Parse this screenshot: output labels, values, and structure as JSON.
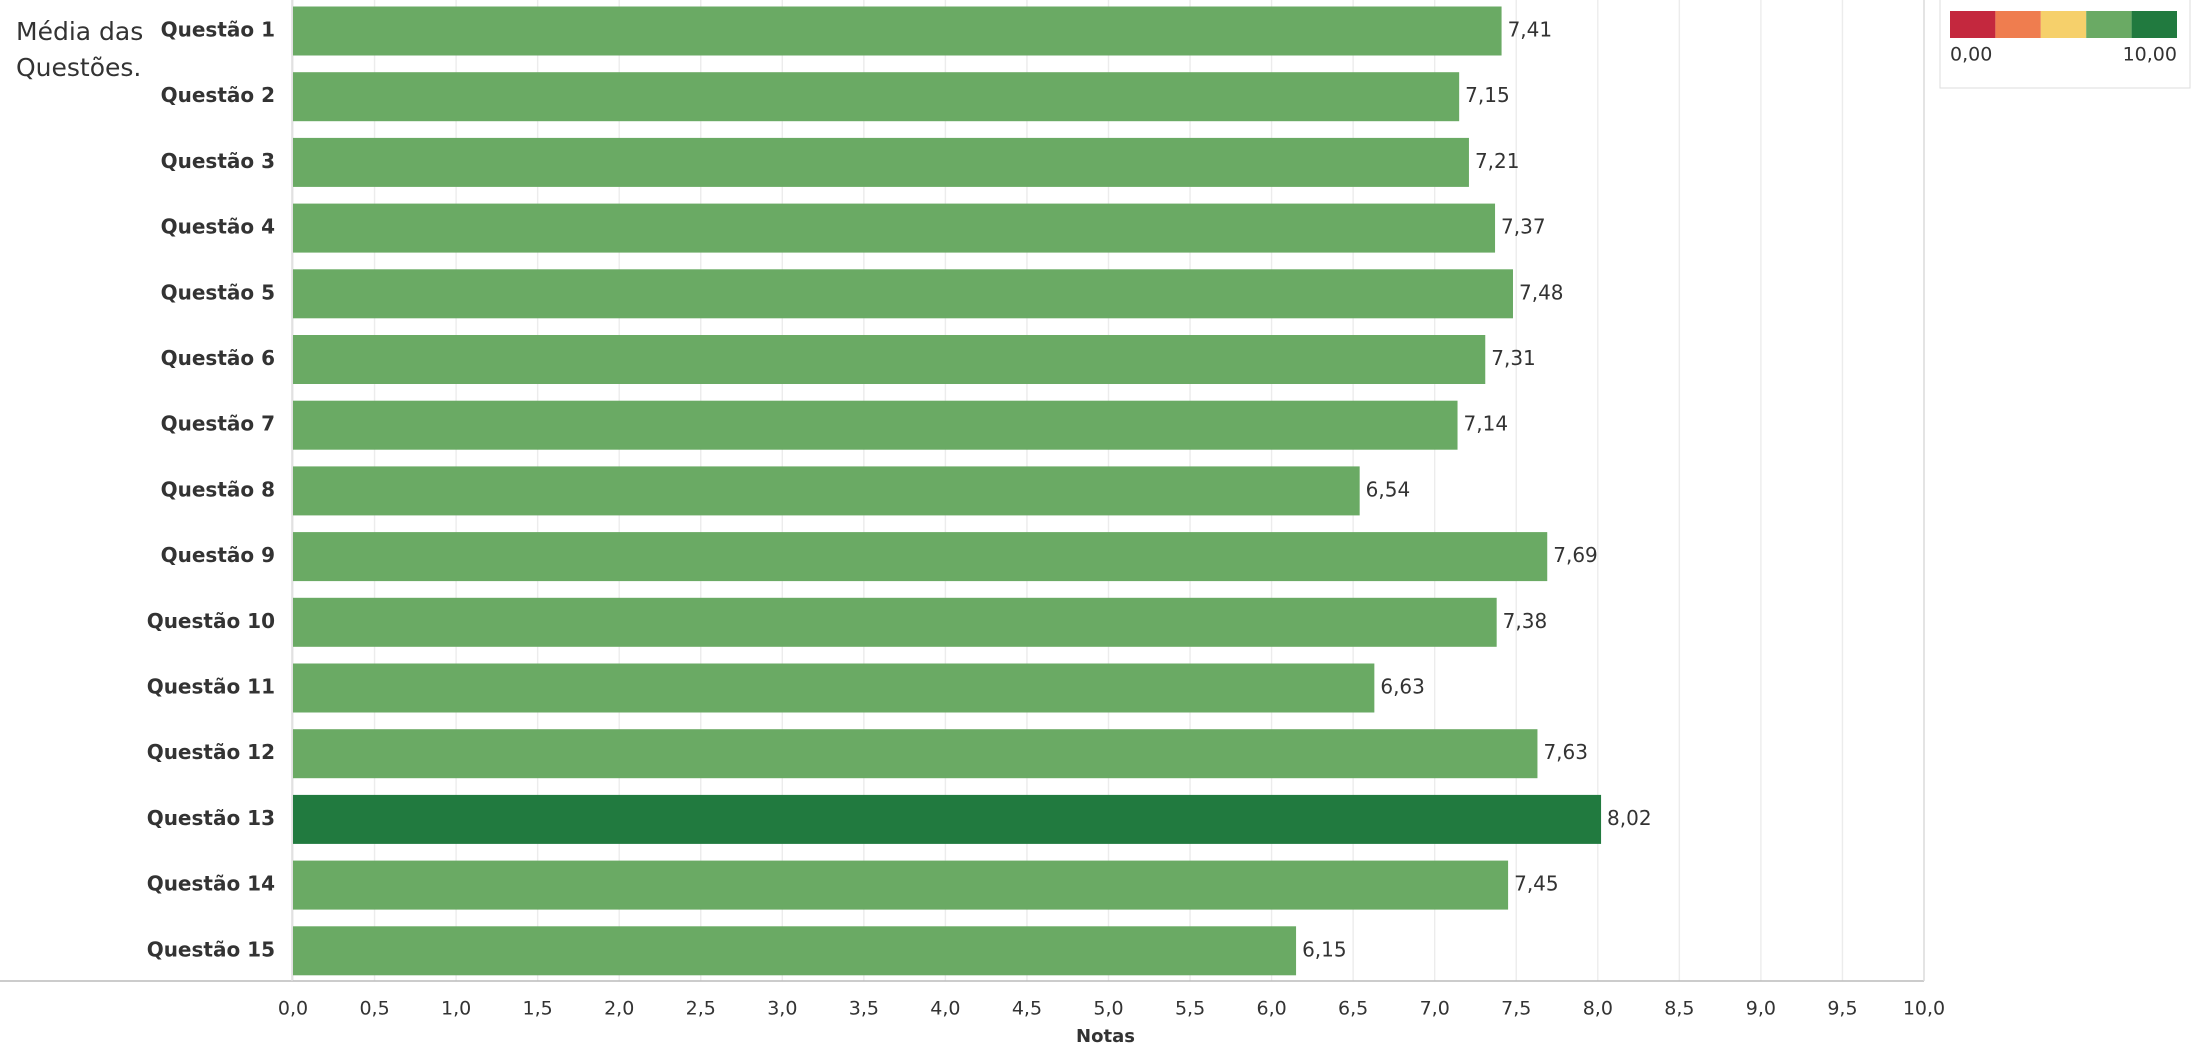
{
  "chart_data": {
    "type": "bar",
    "orientation": "horizontal",
    "title": "Média das Questões.",
    "x_label": "Notas",
    "categories": [
      "Questão 1",
      "Questão 2",
      "Questão 3",
      "Questão 4",
      "Questão 5",
      "Questão 6",
      "Questão 7",
      "Questão 8",
      "Questão 9",
      "Questão 10",
      "Questão 11",
      "Questão 12",
      "Questão 13",
      "Questão 14",
      "Questão 15"
    ],
    "values": [
      7.41,
      7.15,
      7.21,
      7.37,
      7.48,
      7.31,
      7.14,
      6.54,
      7.69,
      7.38,
      6.63,
      7.63,
      8.02,
      7.45,
      6.15
    ],
    "value_labels": [
      "7,41",
      "7,15",
      "7,21",
      "7,37",
      "7,48",
      "7,31",
      "7,14",
      "6,54",
      "7,69",
      "7,38",
      "6,63",
      "7,63",
      "8,02",
      "7,45",
      "6,15"
    ],
    "colors": [
      "#6aaa64",
      "#6aaa64",
      "#6aaa64",
      "#6aaa64",
      "#6aaa64",
      "#6aaa64",
      "#6aaa64",
      "#6aaa64",
      "#6aaa64",
      "#6aaa64",
      "#6aaa64",
      "#6aaa64",
      "#217a3f",
      "#6aaa64",
      "#6aaa64"
    ],
    "xlim": [
      0,
      10
    ],
    "xticks": [
      {
        "value": 0,
        "label": "0,0"
      },
      {
        "value": 0.5,
        "label": "0,5"
      },
      {
        "value": 1,
        "label": "1,0"
      },
      {
        "value": 1.5,
        "label": "1,5"
      },
      {
        "value": 2,
        "label": "2,0"
      },
      {
        "value": 2.5,
        "label": "2,5"
      },
      {
        "value": 3,
        "label": "3,0"
      },
      {
        "value": 3.5,
        "label": "3,5"
      },
      {
        "value": 4,
        "label": "4,0"
      },
      {
        "value": 4.5,
        "label": "4,5"
      },
      {
        "value": 5,
        "label": "5,0"
      },
      {
        "value": 5.5,
        "label": "5,5"
      },
      {
        "value": 6,
        "label": "6,0"
      },
      {
        "value": 6.5,
        "label": "6,5"
      },
      {
        "value": 7,
        "label": "7,0"
      },
      {
        "value": 7.5,
        "label": "7,5"
      },
      {
        "value": 8,
        "label": "8,0"
      },
      {
        "value": 8.5,
        "label": "8,5"
      },
      {
        "value": 9,
        "label": "9,0"
      },
      {
        "value": 9.5,
        "label": "9,5"
      },
      {
        "value": 10,
        "label": "10,0"
      }
    ],
    "grid": true,
    "legend": {
      "colors": [
        "#c4283e",
        "#ef7d4f",
        "#f6d06b",
        "#6aaa64",
        "#217a3f"
      ],
      "min_label": "0,00",
      "max_label": "10,00"
    }
  }
}
